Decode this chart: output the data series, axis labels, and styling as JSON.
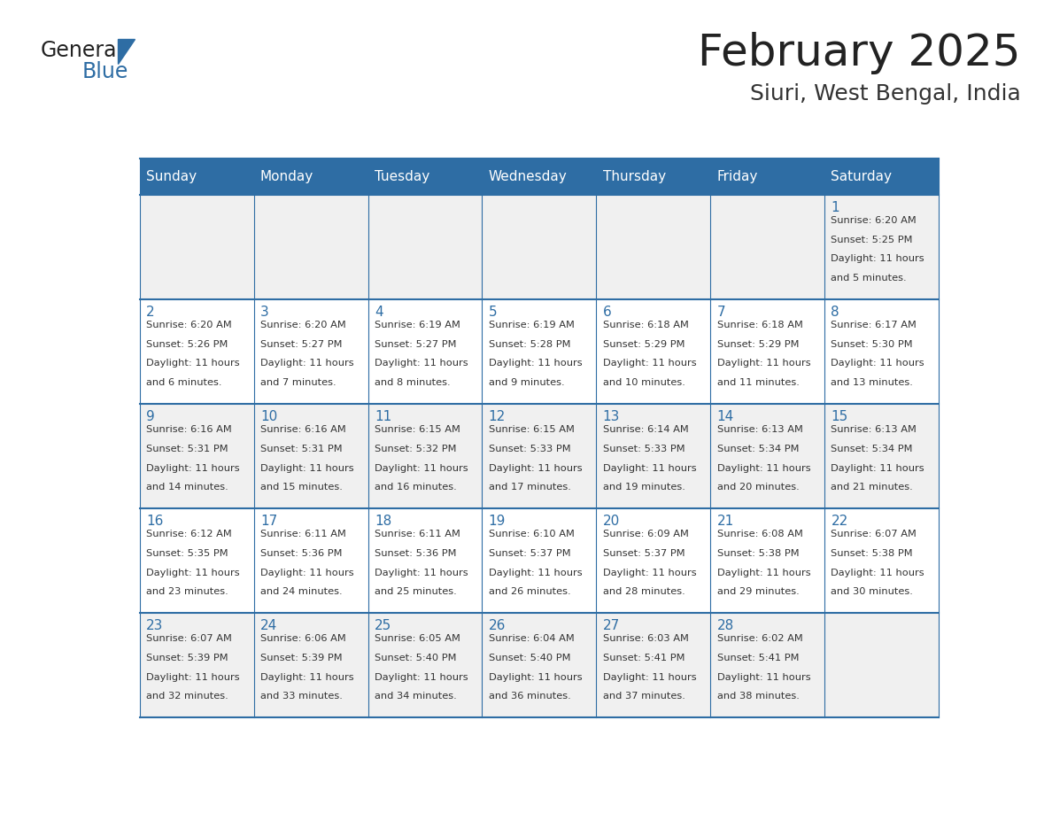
{
  "title": "February 2025",
  "subtitle": "Siuri, West Bengal, India",
  "header_bg": "#2E6DA4",
  "header_text_color": "#FFFFFF",
  "cell_bg_odd": "#F0F0F0",
  "cell_bg_even": "#FFFFFF",
  "day_number_color": "#2E6DA4",
  "cell_text_color": "#333333",
  "border_color": "#2E6DA4",
  "days_of_week": [
    "Sunday",
    "Monday",
    "Tuesday",
    "Wednesday",
    "Thursday",
    "Friday",
    "Saturday"
  ],
  "calendar_data": [
    [
      null,
      null,
      null,
      null,
      null,
      null,
      1
    ],
    [
      2,
      3,
      4,
      5,
      6,
      7,
      8
    ],
    [
      9,
      10,
      11,
      12,
      13,
      14,
      15
    ],
    [
      16,
      17,
      18,
      19,
      20,
      21,
      22
    ],
    [
      23,
      24,
      25,
      26,
      27,
      28,
      null
    ]
  ],
  "sunrise_data": {
    "1": "6:20 AM",
    "2": "6:20 AM",
    "3": "6:20 AM",
    "4": "6:19 AM",
    "5": "6:19 AM",
    "6": "6:18 AM",
    "7": "6:18 AM",
    "8": "6:17 AM",
    "9": "6:16 AM",
    "10": "6:16 AM",
    "11": "6:15 AM",
    "12": "6:15 AM",
    "13": "6:14 AM",
    "14": "6:13 AM",
    "15": "6:13 AM",
    "16": "6:12 AM",
    "17": "6:11 AM",
    "18": "6:11 AM",
    "19": "6:10 AM",
    "20": "6:09 AM",
    "21": "6:08 AM",
    "22": "6:07 AM",
    "23": "6:07 AM",
    "24": "6:06 AM",
    "25": "6:05 AM",
    "26": "6:04 AM",
    "27": "6:03 AM",
    "28": "6:02 AM"
  },
  "sunset_data": {
    "1": "5:25 PM",
    "2": "5:26 PM",
    "3": "5:27 PM",
    "4": "5:27 PM",
    "5": "5:28 PM",
    "6": "5:29 PM",
    "7": "5:29 PM",
    "8": "5:30 PM",
    "9": "5:31 PM",
    "10": "5:31 PM",
    "11": "5:32 PM",
    "12": "5:33 PM",
    "13": "5:33 PM",
    "14": "5:34 PM",
    "15": "5:34 PM",
    "16": "5:35 PM",
    "17": "5:36 PM",
    "18": "5:36 PM",
    "19": "5:37 PM",
    "20": "5:37 PM",
    "21": "5:38 PM",
    "22": "5:38 PM",
    "23": "5:39 PM",
    "24": "5:39 PM",
    "25": "5:40 PM",
    "26": "5:40 PM",
    "27": "5:41 PM",
    "28": "5:41 PM"
  },
  "daylight_data": {
    "1": "11 hours and 5 minutes",
    "2": "11 hours and 6 minutes",
    "3": "11 hours and 7 minutes",
    "4": "11 hours and 8 minutes",
    "5": "11 hours and 9 minutes",
    "6": "11 hours and 10 minutes",
    "7": "11 hours and 11 minutes",
    "8": "11 hours and 13 minutes",
    "9": "11 hours and 14 minutes",
    "10": "11 hours and 15 minutes",
    "11": "11 hours and 16 minutes",
    "12": "11 hours and 17 minutes",
    "13": "11 hours and 19 minutes",
    "14": "11 hours and 20 minutes",
    "15": "11 hours and 21 minutes",
    "16": "11 hours and 23 minutes",
    "17": "11 hours and 24 minutes",
    "18": "11 hours and 25 minutes",
    "19": "11 hours and 26 minutes",
    "20": "11 hours and 28 minutes",
    "21": "11 hours and 29 minutes",
    "22": "11 hours and 30 minutes",
    "23": "11 hours and 32 minutes",
    "24": "11 hours and 33 minutes",
    "25": "11 hours and 34 minutes",
    "26": "11 hours and 36 minutes",
    "27": "11 hours and 37 minutes",
    "28": "11 hours and 38 minutes"
  }
}
